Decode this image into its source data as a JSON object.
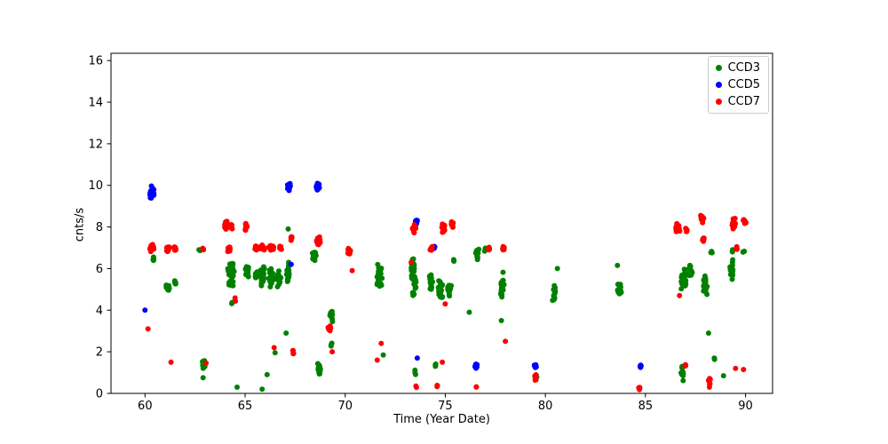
{
  "chart_data": {
    "type": "scatter",
    "title": "",
    "xlabel": "Time (Year Date)",
    "ylabel": "cnts/s",
    "xlim": [
      58.3,
      91.35
    ],
    "ylim": [
      0,
      16.35
    ],
    "xticks": [
      60,
      65,
      70,
      75,
      80,
      85,
      90
    ],
    "yticks": [
      0,
      2,
      4,
      6,
      8,
      10,
      12,
      14,
      16
    ],
    "grid": false,
    "legend_position": "upper right",
    "marker_radius": 3,
    "cluster_format": [
      "x_center",
      "x_spread",
      "y_center",
      "y_spread",
      "n_points"
    ],
    "series": [
      {
        "name": "CCD3",
        "color": "#008000",
        "clusters": [
          [
            60.42,
            0.06,
            6.45,
            0.2,
            4
          ],
          [
            61.15,
            0.1,
            5.15,
            0.35,
            12
          ],
          [
            61.5,
            0.06,
            5.3,
            0.2,
            6
          ],
          [
            62.72,
            0.04,
            6.9,
            0.08,
            3
          ],
          [
            62.95,
            0.1,
            1.4,
            0.3,
            16
          ],
          [
            62.9,
            0,
            0.75,
            0,
            1
          ],
          [
            64.3,
            0.18,
            5.75,
            0.65,
            48
          ],
          [
            64.35,
            0.06,
            4.35,
            0.12,
            3
          ],
          [
            64.6,
            0,
            0.3,
            0,
            1
          ],
          [
            65.1,
            0.1,
            5.9,
            0.35,
            18
          ],
          [
            65.55,
            0.08,
            5.7,
            0.3,
            10
          ],
          [
            65.85,
            0.15,
            5.6,
            0.5,
            30
          ],
          [
            66.3,
            0.15,
            5.55,
            0.5,
            32
          ],
          [
            66.7,
            0.1,
            5.5,
            0.45,
            18
          ],
          [
            65.85,
            0,
            0.2,
            0,
            1
          ],
          [
            66.1,
            0,
            0.9,
            0,
            1
          ],
          [
            66.5,
            0,
            1.95,
            0,
            1
          ],
          [
            67.15,
            0.1,
            5.8,
            0.55,
            25
          ],
          [
            67.15,
            0,
            7.9,
            0,
            1
          ],
          [
            67.05,
            0,
            2.9,
            0,
            1
          ],
          [
            68.45,
            0.12,
            6.6,
            0.3,
            14
          ],
          [
            68.7,
            0.1,
            1.15,
            0.3,
            18
          ],
          [
            69.3,
            0.08,
            3.7,
            0.3,
            12
          ],
          [
            69.3,
            0.05,
            2.35,
            0.12,
            3
          ],
          [
            71.72,
            0.14,
            5.6,
            0.65,
            30
          ],
          [
            71.9,
            0,
            1.85,
            0,
            1
          ],
          [
            73.42,
            0.15,
            5.6,
            1.0,
            42
          ],
          [
            73.5,
            0.05,
            1.0,
            0.12,
            3
          ],
          [
            74.3,
            0.1,
            5.3,
            0.45,
            18
          ],
          [
            74.75,
            0.15,
            5.0,
            0.5,
            30
          ],
          [
            75.2,
            0.1,
            5.0,
            0.45,
            20
          ],
          [
            75.42,
            0.04,
            6.4,
            0.1,
            3
          ],
          [
            74.5,
            0.05,
            1.35,
            0.12,
            4
          ],
          [
            76.2,
            0,
            3.9,
            0,
            1
          ],
          [
            76.6,
            0.1,
            6.7,
            0.28,
            15
          ],
          [
            77.0,
            0.05,
            6.9,
            0.1,
            4
          ],
          [
            77.85,
            0.12,
            5.2,
            0.7,
            25
          ],
          [
            77.8,
            0,
            3.5,
            0,
            1
          ],
          [
            79.55,
            0.03,
            0.8,
            0.1,
            2
          ],
          [
            80.45,
            0.1,
            4.8,
            0.4,
            15
          ],
          [
            80.6,
            0,
            6.0,
            0,
            1
          ],
          [
            83.7,
            0.12,
            5.0,
            0.38,
            20
          ],
          [
            83.6,
            0,
            6.15,
            0,
            1
          ],
          [
            86.9,
            0.15,
            5.5,
            0.55,
            32
          ],
          [
            87.25,
            0.1,
            5.9,
            0.45,
            14
          ],
          [
            86.85,
            0.08,
            0.9,
            0.6,
            10
          ],
          [
            88.0,
            0.13,
            5.2,
            0.6,
            28
          ],
          [
            88.3,
            0.05,
            6.8,
            0.1,
            3
          ],
          [
            88.15,
            0,
            2.9,
            0,
            1
          ],
          [
            88.45,
            0.04,
            1.7,
            0.15,
            2
          ],
          [
            88.9,
            0,
            0.85,
            0,
            1
          ],
          [
            89.3,
            0.1,
            5.9,
            0.6,
            22
          ],
          [
            89.35,
            0.05,
            6.85,
            0.12,
            4
          ],
          [
            89.9,
            0.05,
            6.8,
            0.1,
            3
          ]
        ]
      },
      {
        "name": "CCD5",
        "color": "#0000ff",
        "clusters": [
          [
            60.35,
            0.12,
            9.7,
            0.35,
            26
          ],
          [
            60.0,
            0,
            4.0,
            0,
            1
          ],
          [
            67.2,
            0.1,
            9.9,
            0.2,
            16
          ],
          [
            67.3,
            0,
            6.2,
            0,
            1
          ],
          [
            68.65,
            0.1,
            9.9,
            0.32,
            22
          ],
          [
            73.55,
            0.08,
            8.2,
            0.22,
            10
          ],
          [
            73.6,
            0,
            1.7,
            0,
            1
          ],
          [
            74.45,
            0.04,
            7.0,
            0.08,
            3
          ],
          [
            76.55,
            0.08,
            1.3,
            0.12,
            12
          ],
          [
            79.5,
            0.07,
            1.3,
            0.1,
            12
          ],
          [
            84.75,
            0.06,
            1.3,
            0.09,
            8
          ]
        ]
      },
      {
        "name": "CCD7",
        "color": "#ff0000",
        "clusters": [
          [
            60.35,
            0.13,
            7.0,
            0.22,
            26
          ],
          [
            60.15,
            0,
            3.1,
            0,
            1
          ],
          [
            61.15,
            0.1,
            6.95,
            0.15,
            14
          ],
          [
            61.5,
            0.06,
            6.95,
            0.12,
            8
          ],
          [
            61.3,
            0,
            1.5,
            0,
            1
          ],
          [
            62.9,
            0.06,
            6.95,
            0.1,
            6
          ],
          [
            63.05,
            0,
            1.45,
            0,
            1
          ],
          [
            64.05,
            0.1,
            8.05,
            0.25,
            20
          ],
          [
            64.3,
            0.1,
            8.0,
            0.25,
            14
          ],
          [
            64.2,
            0.1,
            6.9,
            0.15,
            10
          ],
          [
            64.5,
            0.03,
            4.5,
            0.1,
            2
          ],
          [
            65.05,
            0.08,
            8.0,
            0.2,
            12
          ],
          [
            65.55,
            0.08,
            7.0,
            0.12,
            8
          ],
          [
            65.85,
            0.15,
            7.0,
            0.15,
            16
          ],
          [
            66.3,
            0.15,
            7.0,
            0.15,
            16
          ],
          [
            66.75,
            0.1,
            7.0,
            0.12,
            10
          ],
          [
            66.45,
            0,
            2.2,
            0,
            1
          ],
          [
            67.3,
            0.05,
            7.45,
            0.15,
            6
          ],
          [
            67.4,
            0.05,
            1.95,
            0.15,
            4
          ],
          [
            68.65,
            0.1,
            7.3,
            0.28,
            18
          ],
          [
            69.2,
            0.08,
            3.15,
            0.25,
            14
          ],
          [
            69.35,
            0,
            2.0,
            0,
            1
          ],
          [
            70.2,
            0.1,
            6.9,
            0.22,
            14
          ],
          [
            70.35,
            0,
            5.9,
            0,
            1
          ],
          [
            71.8,
            0,
            2.4,
            0,
            1
          ],
          [
            71.6,
            0,
            1.6,
            0,
            1
          ],
          [
            73.45,
            0.1,
            7.9,
            0.25,
            18
          ],
          [
            73.3,
            0,
            6.3,
            0,
            1
          ],
          [
            73.55,
            0.03,
            0.35,
            0.1,
            2
          ],
          [
            74.3,
            0.08,
            6.95,
            0.12,
            8
          ],
          [
            74.9,
            0.1,
            7.95,
            0.25,
            20
          ],
          [
            75.35,
            0.08,
            8.1,
            0.2,
            12
          ],
          [
            74.6,
            0.04,
            0.4,
            0.15,
            3
          ],
          [
            74.85,
            0,
            1.5,
            0,
            1
          ],
          [
            75.0,
            0,
            4.3,
            0,
            1
          ],
          [
            76.55,
            0.03,
            0.3,
            0.08,
            2
          ],
          [
            77.2,
            0.05,
            6.95,
            0.1,
            6
          ],
          [
            77.9,
            0.06,
            6.95,
            0.12,
            8
          ],
          [
            78.0,
            0,
            2.5,
            0,
            1
          ],
          [
            79.5,
            0.06,
            0.78,
            0.18,
            8
          ],
          [
            84.7,
            0.04,
            0.25,
            0.12,
            4
          ],
          [
            86.6,
            0.12,
            7.9,
            0.3,
            20
          ],
          [
            86.7,
            0,
            4.7,
            0,
            1
          ],
          [
            87.05,
            0.05,
            7.82,
            0.14,
            6
          ],
          [
            87.0,
            0.05,
            1.3,
            0.12,
            4
          ],
          [
            87.85,
            0.1,
            8.4,
            0.2,
            18
          ],
          [
            87.9,
            0.05,
            7.4,
            0.15,
            8
          ],
          [
            88.2,
            0.07,
            0.45,
            0.35,
            8
          ],
          [
            89.4,
            0.1,
            8.15,
            0.28,
            16
          ],
          [
            89.55,
            0.04,
            7.0,
            0.1,
            5
          ],
          [
            89.5,
            0,
            1.2,
            0,
            1
          ],
          [
            89.95,
            0.08,
            8.25,
            0.18,
            8
          ],
          [
            89.9,
            0,
            1.15,
            0,
            1
          ]
        ]
      }
    ]
  }
}
